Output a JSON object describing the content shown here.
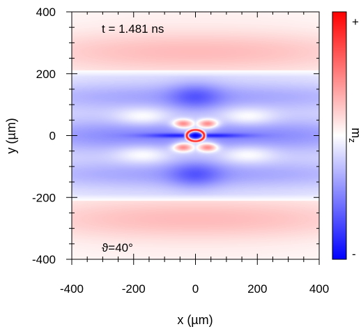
{
  "chart_data": {
    "type": "heatmap",
    "xlabel": "x (µm)",
    "ylabel": "y (µm)",
    "xlim": [
      -400,
      400
    ],
    "ylim": [
      -400,
      400
    ],
    "xticks": [
      "-400",
      "-200",
      "0",
      "200",
      "400"
    ],
    "yticks": [
      "400",
      "200",
      "0",
      "-200",
      "-400"
    ],
    "annotations": {
      "time": "t = 1.481 ns",
      "angle": "ϑ=40°"
    },
    "colorbar": {
      "label": "m",
      "label_subscript": "z",
      "max_label": "+",
      "min_label": "-",
      "colors": [
        "#0000ff",
        "#ffffff",
        "#ff0000"
      ]
    },
    "field_description": {
      "outer_band_sign": "positive",
      "outer_band_y": 270,
      "negative_band_y": 125,
      "node_line_y": 210,
      "central_ring_radius_x": 28,
      "central_ring_radius_y": 18
    }
  }
}
